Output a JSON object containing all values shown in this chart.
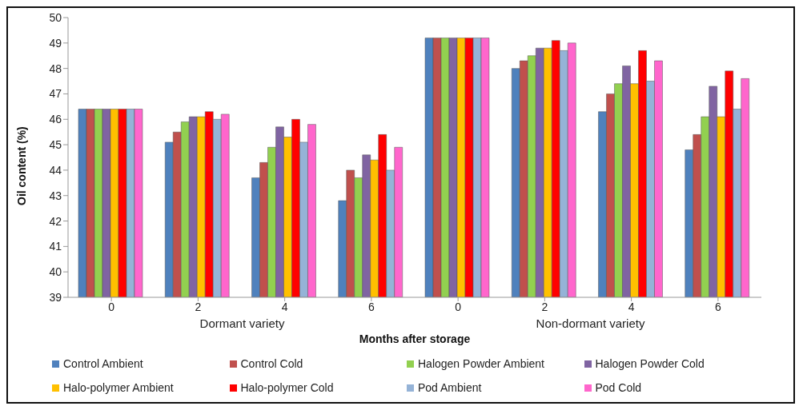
{
  "chart_data": {
    "type": "bar",
    "xlabel": "Months after storage",
    "ylabel": "Oil content (%)",
    "categories": [
      "0",
      "2",
      "4",
      "6",
      "0",
      "2",
      "4",
      "6"
    ],
    "annotations": [
      "Dormant variety",
      "Non-dormant variety"
    ],
    "ylim": [
      39,
      50
    ],
    "yticks": [
      39,
      40,
      41,
      42,
      43,
      44,
      45,
      46,
      47,
      48,
      49,
      50
    ],
    "grid": false,
    "legend": "bottom",
    "series": [
      {
        "name": "Control Ambient",
        "color": "#4f81bd",
        "values": [
          46.4,
          45.1,
          43.7,
          42.8,
          49.2,
          48.0,
          46.3,
          44.8
        ]
      },
      {
        "name": "Control Cold",
        "color": "#c0504d",
        "values": [
          46.4,
          45.5,
          44.3,
          44.0,
          49.2,
          48.3,
          47.0,
          45.4
        ]
      },
      {
        "name": "Halogen Powder Ambient",
        "color": "#92d050",
        "values": [
          46.4,
          45.9,
          44.9,
          43.7,
          49.2,
          48.5,
          47.4,
          46.1
        ]
      },
      {
        "name": "Halogen Powder Cold",
        "color": "#8064a2",
        "values": [
          46.4,
          46.1,
          45.7,
          44.6,
          49.2,
          48.8,
          48.1,
          47.3
        ]
      },
      {
        "name": "Halo-polymer Ambient",
        "color": "#ffc000",
        "values": [
          46.4,
          46.1,
          45.3,
          44.4,
          49.2,
          48.8,
          47.4,
          46.1
        ]
      },
      {
        "name": "Halo-polymer Cold",
        "color": "#ff0000",
        "values": [
          46.4,
          46.3,
          46.0,
          45.4,
          49.2,
          49.1,
          48.7,
          47.9
        ]
      },
      {
        "name": "Pod Ambient",
        "color": "#95b3d7",
        "values": [
          46.4,
          46.0,
          45.1,
          44.0,
          49.2,
          48.7,
          47.5,
          46.4
        ]
      },
      {
        "name": "Pod Cold",
        "color": "#ff66cc",
        "values": [
          46.4,
          46.2,
          45.8,
          44.9,
          49.2,
          49.0,
          48.3,
          47.6
        ]
      }
    ]
  }
}
